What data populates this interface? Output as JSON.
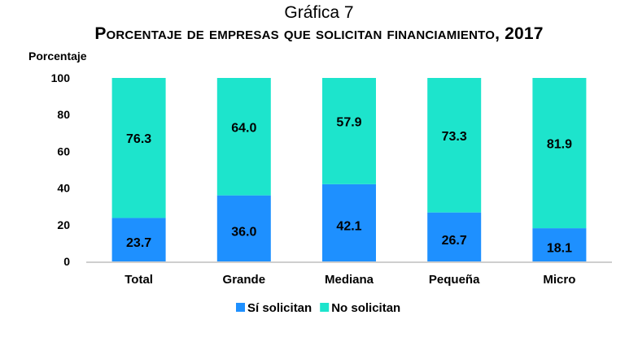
{
  "chart_data": {
    "type": "bar",
    "stacked": true,
    "title": "Gráfica 7",
    "subtitle": "Porcentaje de empresas que solicitan financiamiento, 2017",
    "ylabel": "Porcentaje",
    "xlabel": "",
    "ylim": [
      0,
      100
    ],
    "yticks": [
      0,
      20,
      40,
      60,
      80,
      100
    ],
    "categories": [
      "Total",
      "Grande",
      "Mediana",
      "Pequeña",
      "Micro"
    ],
    "series": [
      {
        "name": "Sí solicitan",
        "color": "#1e90ff",
        "values": [
          23.7,
          36.0,
          42.1,
          26.7,
          18.1
        ],
        "labels": [
          "23.7",
          "36.0",
          "42.1",
          "26.7",
          "18.1"
        ]
      },
      {
        "name": "No solicitan",
        "color": "#1de4cc",
        "values": [
          76.3,
          64.0,
          57.9,
          73.3,
          81.9
        ],
        "labels": [
          "76.3",
          "64.0",
          "57.9",
          "73.3",
          "81.9"
        ]
      }
    ],
    "grid": false,
    "legend_position": "bottom"
  }
}
